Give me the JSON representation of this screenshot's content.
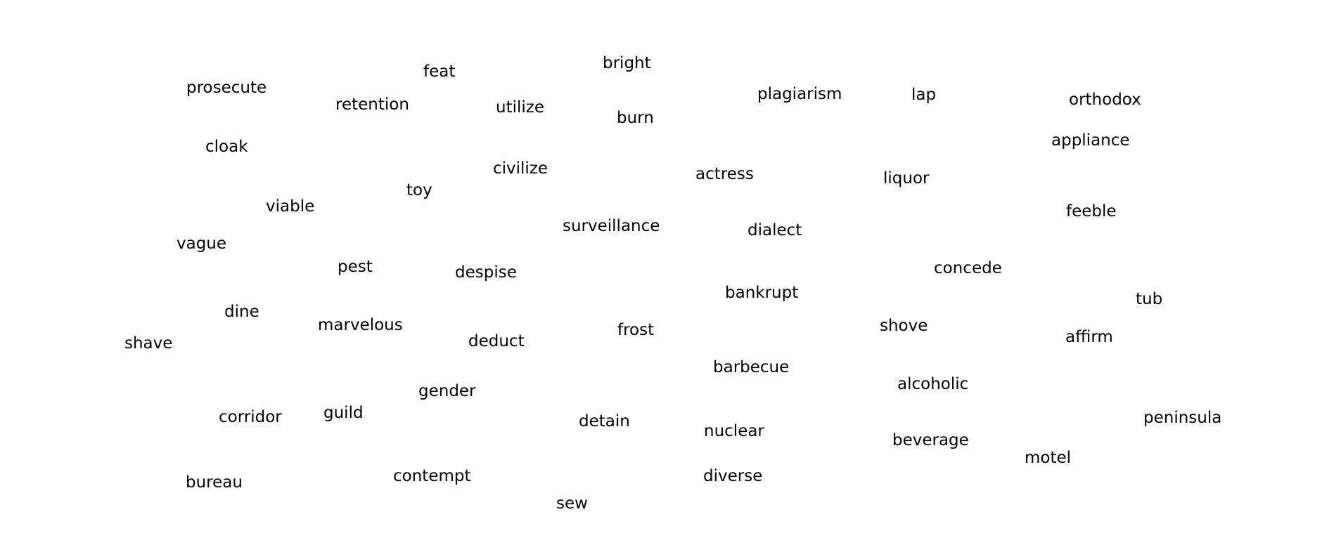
{
  "words": [
    "prosecute",
    "feat",
    "bright",
    "retention",
    "utilize",
    "burn",
    "plagiarism",
    "lap",
    "orthodox",
    "cloak",
    "appliance",
    "civilize",
    "toy",
    "actress",
    "liquor",
    "viable",
    "feeble",
    "surveillance",
    "dialect",
    "vague",
    "pest",
    "despise",
    "concede",
    "bankrupt",
    "tub",
    "dine",
    "marvelous",
    "frost",
    "shove",
    "affirm",
    "shave",
    "deduct",
    "barbecue",
    "alcoholic",
    "gender",
    "corridor",
    "guild",
    "detain",
    "nuclear",
    "peninsula",
    "beverage",
    "motel",
    "bureau",
    "contempt",
    "diverse",
    "sew"
  ]
}
